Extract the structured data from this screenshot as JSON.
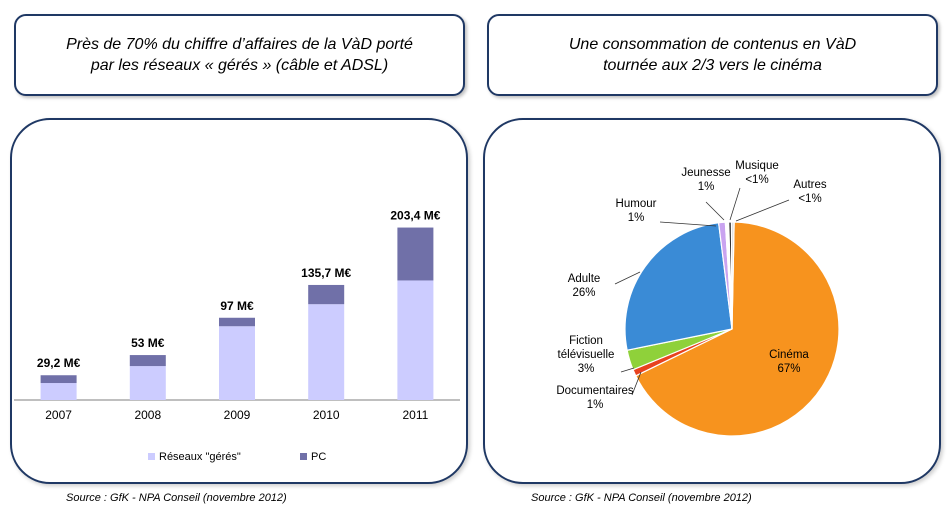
{
  "left": {
    "title": "Près de 70% du chiffre d’affaires de la VàD porté\npar les réseaux « gérés » (câble et ADSL)",
    "source": "Source : GfK - NPA Conseil (novembre 2012)",
    "chart_data": {
      "type": "bar",
      "stacked": true,
      "categories": [
        "2007",
        "2008",
        "2009",
        "2010",
        "2011"
      ],
      "totals_labels": [
        "29,2 M€",
        "53 M€",
        "97 M€",
        "135,7 M€",
        "203,4 M€"
      ],
      "series": [
        {
          "name": "Réseaux \"gérés\"",
          "values": [
            20.0,
            40.0,
            87.0,
            113.0,
            141.0
          ],
          "color": "#ccccff"
        },
        {
          "name": "PC",
          "values": [
            9.2,
            13.0,
            10.0,
            22.7,
            62.4
          ],
          "color": "#7070a8"
        }
      ],
      "ylim": [
        0,
        230
      ],
      "legend": "bottom"
    }
  },
  "right": {
    "title": "Une consommation de contenus en VàD\ntournée aux 2/3 vers le cinéma",
    "source": "Source : GfK - NPA Conseil (novembre 2012)",
    "chart_data": {
      "type": "pie",
      "slices": [
        {
          "name": "Cinéma",
          "value": 67,
          "label": "Cinéma\n67%",
          "color": "#f7931e"
        },
        {
          "name": "Documentaires",
          "value": 1,
          "label": "Documentaires\n1%",
          "color": "#e8421e"
        },
        {
          "name": "Fiction télévisuelle",
          "value": 3,
          "label": "Fiction\ntélévisuelle\n3%",
          "color": "#8fd13a"
        },
        {
          "name": "Adulte",
          "value": 26,
          "label": "Adulte\n26%",
          "color": "#3a8bd6"
        },
        {
          "name": "Humour",
          "value": 1,
          "label": "Humour\n1%",
          "color": "#c9a3f0"
        },
        {
          "name": "Jeunesse",
          "value": 0.5,
          "label": "Jeunesse\n1%",
          "color": "#ffffff"
        },
        {
          "name": "Musique",
          "value": 0.4,
          "label": "Musique\n<1%",
          "color": "#1a1a1a"
        },
        {
          "name": "Autres",
          "value": 0.4,
          "label": "Autres\n<1%",
          "color": "#e0e0e0"
        }
      ]
    }
  }
}
